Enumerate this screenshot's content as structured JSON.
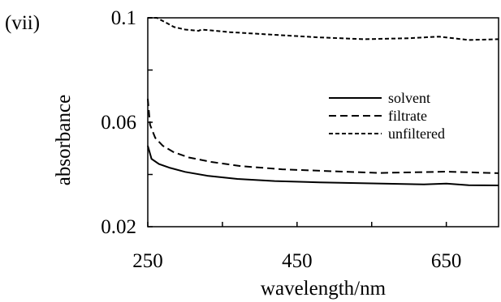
{
  "panel_label": "(vii)",
  "chart_data": {
    "type": "line",
    "title": "",
    "xlabel": "wavelength/nm",
    "ylabel": "absorbance",
    "xlim": [
      250,
      720
    ],
    "ylim": [
      0.02,
      0.1
    ],
    "xticks": [
      250,
      450,
      650
    ],
    "xtick_labels": [
      "250",
      "450",
      "650"
    ],
    "yticks": [
      0.02,
      0.06,
      0.1
    ],
    "ytick_labels": [
      "0.02",
      "0.06",
      "0.1"
    ],
    "grid": false,
    "legend_position": "right",
    "series": [
      {
        "name": "solvent",
        "style": "solid",
        "x": [
          250,
          255,
          265,
          280,
          300,
          330,
          370,
          420,
          480,
          550,
          620,
          650,
          680,
          720
        ],
        "y": [
          0.051,
          0.046,
          0.044,
          0.0425,
          0.041,
          0.0395,
          0.0383,
          0.0375,
          0.037,
          0.0366,
          0.0362,
          0.0365,
          0.0359,
          0.0358
        ]
      },
      {
        "name": "filtrate",
        "style": "long-dash",
        "x": [
          250,
          253,
          260,
          270,
          285,
          305,
          335,
          375,
          430,
          500,
          560,
          620,
          650,
          720
        ],
        "y": [
          0.069,
          0.059,
          0.054,
          0.051,
          0.0485,
          0.0465,
          0.0448,
          0.0432,
          0.042,
          0.0412,
          0.0406,
          0.0409,
          0.0411,
          0.0405
        ]
      },
      {
        "name": "unfiltered",
        "style": "short-dash",
        "x": [
          250,
          251,
          253,
          262,
          272,
          285,
          300,
          318,
          322,
          360,
          420,
          480,
          540,
          600,
          640,
          680,
          720
        ],
        "y": [
          0.1,
          0.1,
          0.1,
          0.1,
          0.0985,
          0.0965,
          0.0955,
          0.095,
          0.0955,
          0.0945,
          0.0935,
          0.0925,
          0.0918,
          0.0922,
          0.0928,
          0.0915,
          0.0918
        ]
      }
    ]
  }
}
